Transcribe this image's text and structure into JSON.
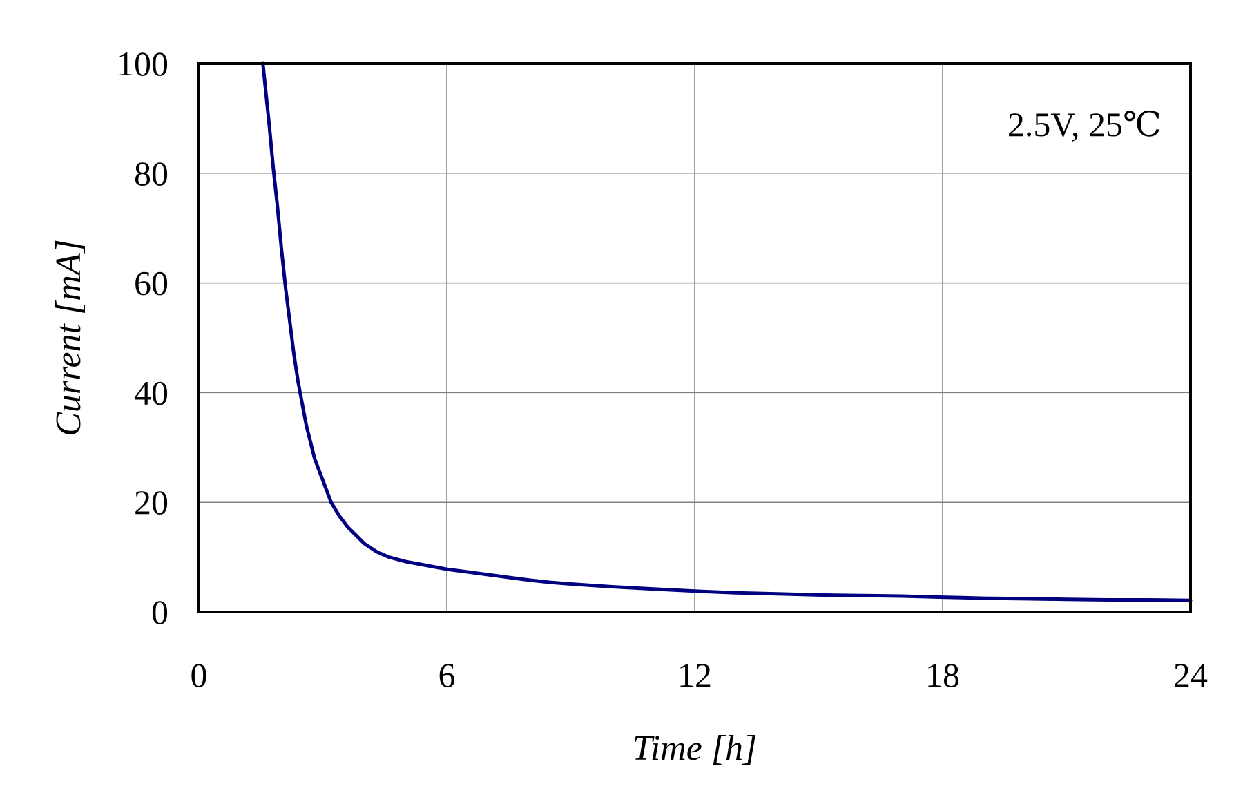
{
  "chart_data": {
    "type": "line",
    "xlabel": "Time [h]",
    "ylabel": "Current [mA]",
    "xlim": [
      0,
      24
    ],
    "ylim": [
      0,
      100
    ],
    "xticks": [
      "0",
      "6",
      "12",
      "18",
      "24"
    ],
    "yticks": [
      "0",
      "20",
      "40",
      "60",
      "80",
      "100"
    ],
    "grid": true,
    "annotation": "2.5V, 25℃",
    "line_color": "#000080",
    "series": [
      {
        "x": [
          1.55,
          1.7,
          1.8,
          1.9,
          2.0,
          2.1,
          2.2,
          2.3,
          2.4,
          2.5,
          2.6,
          2.7,
          2.8,
          2.9,
          3.0,
          3.2,
          3.4,
          3.6,
          3.8,
          4.0,
          4.3,
          4.6,
          5.0,
          5.5,
          6.0,
          6.5,
          7.0,
          7.5,
          8.0,
          8.5,
          9.0,
          10.0,
          11.0,
          12.0,
          13.0,
          14.0,
          15.0,
          16.0,
          17.0,
          18.0,
          19.0,
          20.0,
          21.0,
          22.0,
          23.0,
          24.0
        ],
        "y": [
          100,
          89,
          81,
          74,
          66,
          59,
          53,
          47,
          42,
          38,
          34,
          31,
          28,
          26,
          24,
          20,
          17.5,
          15.5,
          14,
          12.5,
          11,
          10,
          9.2,
          8.5,
          7.8,
          7.3,
          6.8,
          6.3,
          5.8,
          5.4,
          5.1,
          4.6,
          4.2,
          3.8,
          3.5,
          3.3,
          3.1,
          3.0,
          2.9,
          2.7,
          2.5,
          2.4,
          2.3,
          2.2,
          2.2,
          2.1
        ]
      }
    ]
  }
}
